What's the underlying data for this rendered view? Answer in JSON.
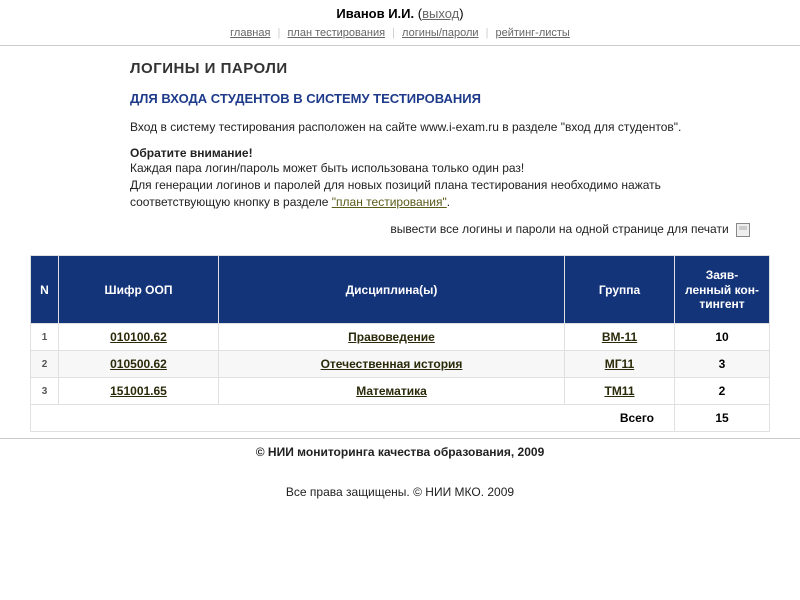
{
  "header": {
    "username": "Иванов И.И.",
    "logout": "выход"
  },
  "nav": {
    "home": "главная",
    "plan": "план тестирования",
    "logins": "логины/пароли",
    "rating": "рейтинг-листы"
  },
  "page": {
    "title": "ЛОГИНЫ И ПАРОЛИ",
    "subtitle": "ДЛЯ ВХОДА СТУДЕНТОВ В СИСТЕМУ ТЕСТИРОВАНИЯ",
    "info": "Вход в систему тестирования расположен на сайте www.i-exam.ru в разделе \"вход для студентов\".",
    "notice_heading": "Обратите внимание!",
    "notice_line1": "Каждая пара логин/пароль может быть использована только один раз!",
    "notice_line2_pre": "Для генерации логинов и паролей для новых позиций плана тестирования необходимо нажать соответствующую кнопку в разделе ",
    "notice_link": "\"план тестирования\"",
    "notice_line2_post": ".",
    "print_label": "вывести все логины и пароли на одной странице для печати"
  },
  "table": {
    "headers": {
      "n": "N",
      "code": "Шифр ООП",
      "discipline": "Дисциплина(ы)",
      "group": "Группа",
      "count": "Заяв-\nленный кон-\nтингент"
    },
    "rows": [
      {
        "idx": "1",
        "code": "010100.62",
        "discipline": "Правоведение",
        "group": "ВМ-11",
        "count": "10"
      },
      {
        "idx": "2",
        "code": "010500.62",
        "discipline": "Отечественная история",
        "group": "МГ11",
        "count": "3"
      },
      {
        "idx": "3",
        "code": "151001.65",
        "discipline": "Математика",
        "group": "ТМ11",
        "count": "2"
      }
    ],
    "total_label": "Всего",
    "total_value": "15"
  },
  "footer": {
    "copyright": "© НИИ мониторинга качества образования, 2009",
    "rights": "Все права защищены. © НИИ МКО. 2009"
  },
  "colors": {
    "header_bg": "#14347a",
    "link": "#5a5a1a",
    "subtitle": "#1e3a8a",
    "border": "#e0e0e0"
  }
}
